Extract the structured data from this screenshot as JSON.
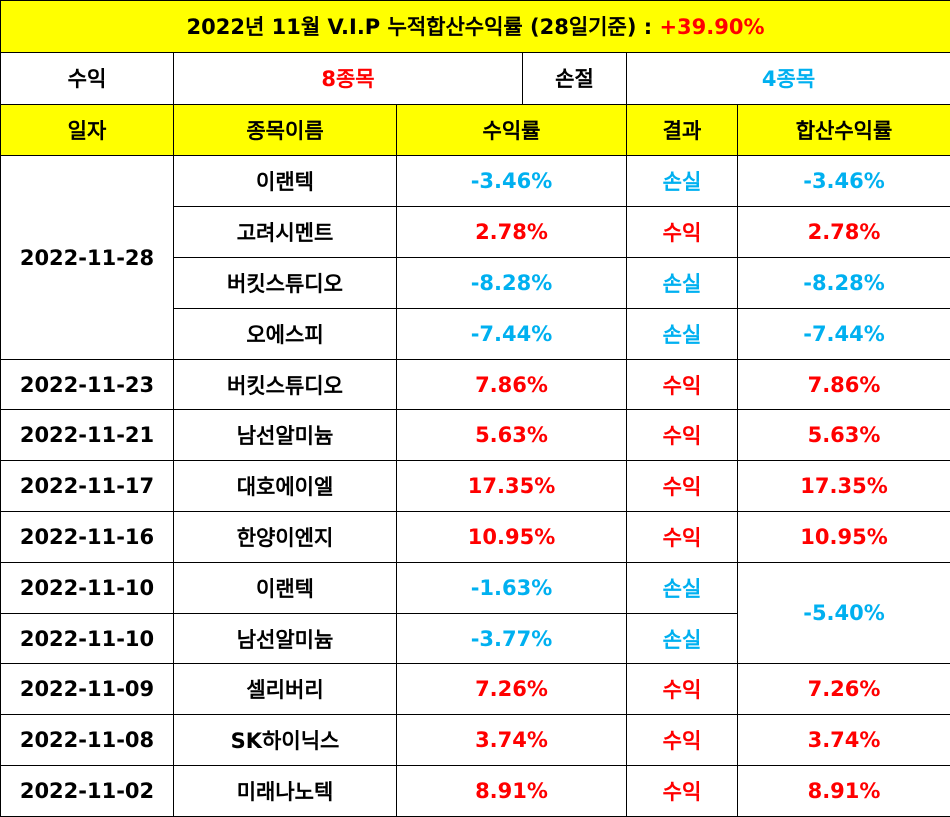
{
  "title": {
    "text": "2022년 11월 V.I.P 누적합산수익률 (28일기준) : ",
    "total_return": "+39.90%"
  },
  "summary": {
    "profit_label": "수익",
    "profit_count": "8종목",
    "loss_label": "손절",
    "loss_count": "4종목"
  },
  "headers": [
    "일자",
    "종목이름",
    "수익률",
    "결과",
    "합산수익률"
  ],
  "groups": [
    {
      "date": "2022-11-28",
      "rows": [
        {
          "stock": "이랜텍",
          "return": "-3.46%",
          "result": "손실",
          "combined": "-3.46%"
        },
        {
          "stock": "고려시멘트",
          "return": "2.78%",
          "result": "수익",
          "combined": "2.78%"
        },
        {
          "stock": "버킷스튜디오",
          "return": "-8.28%",
          "result": "손실",
          "combined": "-8.28%"
        },
        {
          "stock": "오에스피",
          "return": "-7.44%",
          "result": "손실",
          "combined": "-7.44%"
        }
      ]
    },
    {
      "date": "2022-11-23",
      "rows": [
        {
          "stock": "버킷스튜디오",
          "return": "7.86%",
          "result": "수익",
          "combined": "7.86%"
        }
      ]
    },
    {
      "date": "2022-11-21",
      "rows": [
        {
          "stock": "남선알미늄",
          "return": "5.63%",
          "result": "수익",
          "combined": "5.63%"
        }
      ]
    },
    {
      "date": "2022-11-17",
      "rows": [
        {
          "stock": "대호에이엘",
          "return": "17.35%",
          "result": "수익",
          "combined": "17.35%"
        }
      ]
    },
    {
      "date": "2022-11-16",
      "rows": [
        {
          "stock": "한양이엔지",
          "return": "10.95%",
          "result": "수익",
          "combined": "10.95%"
        }
      ]
    },
    {
      "date": "2022-11-10",
      "rows": [
        {
          "stock": "이랜텍",
          "return": "-1.63%",
          "result": "손실",
          "combined": "-5.40%"
        }
      ]
    },
    {
      "date": "2022-11-10",
      "rows": [
        {
          "stock": "남선알미늄",
          "return": "-3.77%",
          "result": "손실",
          "combined": null
        }
      ]
    },
    {
      "date": "2022-11-09",
      "rows": [
        {
          "stock": "셀리버리",
          "return": "7.26%",
          "result": "수익",
          "combined": "7.26%"
        }
      ]
    },
    {
      "date": "2022-11-08",
      "rows": [
        {
          "stock": "SK하이닉스",
          "return": "3.74%",
          "result": "수익",
          "combined": "3.74%"
        }
      ]
    },
    {
      "date": "2022-11-02",
      "rows": [
        {
          "stock": "미래나노텍",
          "return": "8.91%",
          "result": "수익",
          "combined": "8.91%"
        }
      ]
    }
  ],
  "colors": {
    "header_bg": "#ffff00",
    "profit": "#ff0000",
    "loss": "#00b0f0"
  }
}
